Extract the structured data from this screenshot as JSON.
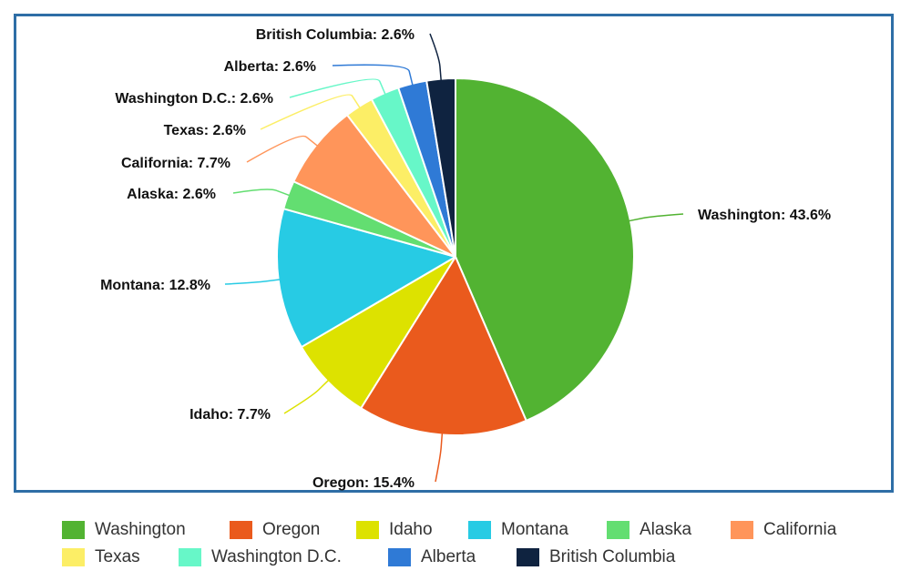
{
  "chart_data": {
    "type": "pie",
    "start_angle_deg": 0,
    "direction": "clockwise",
    "label_format": "{name}: {pct}%",
    "legend_position": "bottom",
    "slices": [
      {
        "name": "Washington",
        "pct": "43.6",
        "color": "#52b332"
      },
      {
        "name": "Oregon",
        "pct": "15.4",
        "color": "#ea5a1d"
      },
      {
        "name": "Idaho",
        "pct": "7.7",
        "color": "#dde200"
      },
      {
        "name": "Montana",
        "pct": "12.8",
        "color": "#27cbe4"
      },
      {
        "name": "Alaska",
        "pct": "2.6",
        "color": "#63de71"
      },
      {
        "name": "California",
        "pct": "7.7",
        "color": "#ff955a"
      },
      {
        "name": "Texas",
        "pct": "2.6",
        "color": "#fcee66"
      },
      {
        "name": "Washington D.C.",
        "pct": "2.6",
        "color": "#67f7c8"
      },
      {
        "name": "Alberta",
        "pct": "2.6",
        "color": "#2f7ad6"
      },
      {
        "name": "British Columbia",
        "pct": "2.6",
        "color": "#0f2340"
      }
    ]
  }
}
